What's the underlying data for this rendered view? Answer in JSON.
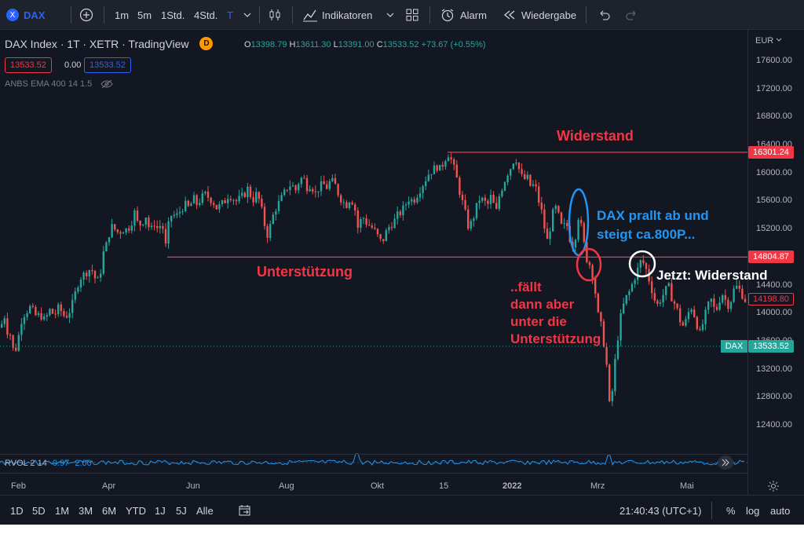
{
  "toolbar": {
    "symbol": "DAX",
    "symbol_badge": "X",
    "timeframes": [
      "1m",
      "5m",
      "1Std.",
      "4Std.",
      "T"
    ],
    "active_timeframe": "T",
    "indicators_label": "Indikatoren",
    "alarm_label": "Alarm",
    "replay_label": "Wiedergabe"
  },
  "legend": {
    "title": "DAX Index · 1T · XETR · TradingView",
    "badge": "D",
    "o_label": "O",
    "o_value": "13398.79",
    "h_label": "H",
    "h_value": "13611.30",
    "l_label": "L",
    "l_value": "13391.00",
    "c_label": "C",
    "c_value": "13533.52",
    "change": "+73.67 (+0.55%)",
    "bid": "13533.52",
    "spread": "0.00",
    "ask": "13533.52"
  },
  "indicator": {
    "label": "ANBS EMA 400 14 1.5"
  },
  "price_axis": {
    "currency": "EUR",
    "ticks": [
      "17600.00",
      "17200.00",
      "16800.00",
      "16400.00",
      "16000.00",
      "15600.00",
      "15200.00",
      "14800.00",
      "14400.00",
      "14000.00",
      "13600.00",
      "13200.00",
      "12800.00",
      "12400.00"
    ]
  },
  "price_tags": {
    "resistance": "16301.24",
    "support": "14804.87",
    "mid": "14198.80",
    "current_label": "DAX",
    "current": "13533.52"
  },
  "annotations": {
    "resistance": "Widerstand",
    "support": "Unterstützung",
    "bounce_line1": "DAX prallt ab und",
    "bounce_line2": "steigt ca.800P...",
    "fall_line1": "..fällt",
    "fall_line2": "dann aber",
    "fall_line3": "unter die",
    "fall_line4": "Unterstützung",
    "now": "Jetzt: Widerstand"
  },
  "rvol": {
    "label": "RVOL 2 14",
    "v1": "0.97",
    "v2": "2.00"
  },
  "x_axis": {
    "ticks": [
      "Feb",
      "Apr",
      "Jun",
      "Aug",
      "Okt",
      "15",
      "2022",
      "Mrz",
      "Mai"
    ]
  },
  "bottombar": {
    "ranges": [
      "1D",
      "5D",
      "1M",
      "3M",
      "6M",
      "YTD",
      "1J",
      "5J",
      "Alle"
    ],
    "time": "21:40:43 (UTC+1)",
    "percent": "%",
    "log": "log",
    "auto": "auto"
  },
  "colors": {
    "up": "#26a69a",
    "down": "#ef5350",
    "level": "#f23645",
    "bounce": "#2196f3",
    "now": "#ffffff"
  },
  "chart_data": {
    "type": "candlestick",
    "ylim": [
      12200,
      17800
    ],
    "x_ticks": [
      "Feb",
      "Apr",
      "Jun",
      "Aug",
      "Okt",
      "15",
      "2022",
      "Mrz",
      "Mai"
    ],
    "levels": [
      {
        "name": "Widerstand",
        "value": 16301.24
      },
      {
        "name": "Unterstützung",
        "value": 14804.87
      }
    ],
    "points": [
      [
        0,
        13800
      ],
      [
        4,
        14000
      ],
      [
        8,
        13750
      ],
      [
        12,
        13700
      ],
      [
        15,
        13500
      ],
      [
        18,
        13450
      ],
      [
        22,
        13650
      ],
      [
        26,
        13900
      ],
      [
        30,
        14000
      ],
      [
        34,
        14050
      ],
      [
        38,
        14100
      ],
      [
        42,
        14000
      ],
      [
        46,
        13950
      ],
      [
        50,
        14000
      ],
      [
        54,
        13900
      ],
      [
        58,
        13950
      ],
      [
        62,
        14050
      ],
      [
        66,
        14000
      ],
      [
        70,
        14000
      ],
      [
        74,
        14100
      ],
      [
        78,
        14000
      ],
      [
        82,
        13950
      ],
      [
        86,
        14000
      ],
      [
        90,
        14100
      ],
      [
        95,
        14300
      ],
      [
        100,
        14500
      ],
      [
        105,
        14550
      ],
      [
        110,
        14600
      ],
      [
        115,
        14650
      ],
      [
        120,
        14500
      ],
      [
        125,
        14450
      ],
      [
        130,
        14850
      ],
      [
        135,
        15000
      ],
      [
        140,
        15250
      ],
      [
        145,
        15200
      ],
      [
        150,
        15150
      ],
      [
        155,
        15200
      ],
      [
        160,
        15200
      ],
      [
        165,
        15250
      ],
      [
        170,
        15450
      ],
      [
        175,
        15250
      ],
      [
        180,
        15300
      ],
      [
        185,
        15400
      ],
      [
        190,
        15150
      ],
      [
        195,
        15300
      ],
      [
        200,
        15200
      ],
      [
        205,
        15300
      ],
      [
        210,
        14950
      ],
      [
        215,
        15400
      ],
      [
        220,
        15400
      ],
      [
        225,
        15400
      ],
      [
        230,
        15500
      ],
      [
        235,
        15550
      ],
      [
        240,
        15500
      ],
      [
        245,
        15650
      ],
      [
        250,
        15550
      ],
      [
        255,
        15650
      ],
      [
        260,
        15700
      ],
      [
        265,
        15650
      ],
      [
        270,
        15600
      ],
      [
        275,
        15500
      ],
      [
        280,
        15550
      ],
      [
        285,
        15600
      ],
      [
        290,
        15700
      ],
      [
        295,
        15650
      ],
      [
        300,
        15600
      ],
      [
        305,
        15650
      ],
      [
        310,
        15700
      ],
      [
        315,
        15800
      ],
      [
        320,
        15600
      ],
      [
        325,
        15700
      ],
      [
        330,
        15600
      ],
      [
        335,
        15300
      ],
      [
        340,
        15100
      ],
      [
        345,
        15350
      ],
      [
        350,
        15500
      ],
      [
        355,
        15600
      ],
      [
        360,
        15700
      ],
      [
        365,
        15800
      ],
      [
        370,
        15850
      ],
      [
        375,
        15750
      ],
      [
        380,
        15900
      ],
      [
        385,
        15950
      ],
      [
        390,
        15800
      ],
      [
        395,
        15850
      ],
      [
        400,
        15700
      ],
      [
        405,
        15800
      ],
      [
        410,
        15850
      ],
      [
        415,
        15800
      ],
      [
        420,
        15900
      ],
      [
        425,
        15850
      ],
      [
        430,
        15700
      ],
      [
        435,
        15600
      ],
      [
        440,
        15550
      ],
      [
        445,
        15650
      ],
      [
        450,
        15550
      ],
      [
        455,
        15200
      ],
      [
        460,
        15400
      ],
      [
        465,
        15300
      ],
      [
        470,
        15250
      ],
      [
        475,
        15200
      ],
      [
        480,
        15100
      ],
      [
        485,
        15000
      ],
      [
        490,
        15150
      ],
      [
        495,
        15250
      ],
      [
        500,
        15300
      ],
      [
        505,
        15400
      ],
      [
        510,
        15450
      ],
      [
        515,
        15550
      ],
      [
        520,
        15650
      ],
      [
        525,
        15600
      ],
      [
        530,
        15700
      ],
      [
        535,
        15800
      ],
      [
        540,
        15900
      ],
      [
        545,
        16000
      ],
      [
        550,
        16050
      ],
      [
        555,
        16100
      ],
      [
        560,
        16050
      ],
      [
        565,
        16200
      ],
      [
        570,
        16280
      ],
      [
        575,
        16150
      ],
      [
        580,
        15950
      ],
      [
        585,
        15700
      ],
      [
        590,
        15500
      ],
      [
        595,
        15250
      ],
      [
        600,
        15300
      ],
      [
        605,
        15500
      ],
      [
        610,
        15650
      ],
      [
        615,
        15600
      ],
      [
        620,
        15550
      ],
      [
        625,
        15700
      ],
      [
        630,
        15400
      ],
      [
        635,
        15700
      ],
      [
        640,
        15850
      ],
      [
        645,
        16000
      ],
      [
        650,
        16100
      ],
      [
        655,
        16250
      ],
      [
        660,
        16050
      ],
      [
        665,
        15900
      ],
      [
        670,
        15950
      ],
      [
        675,
        15800
      ],
      [
        680,
        15850
      ],
      [
        685,
        15600
      ],
      [
        690,
        15400
      ],
      [
        695,
        15000
      ],
      [
        700,
        15250
      ],
      [
        705,
        15550
      ],
      [
        710,
        15400
      ],
      [
        715,
        15200
      ],
      [
        720,
        15300
      ],
      [
        725,
        15050
      ],
      [
        730,
        14950
      ],
      [
        735,
        15400
      ],
      [
        740,
        15200
      ],
      [
        745,
        14800
      ],
      [
        750,
        14700
      ],
      [
        755,
        14500
      ],
      [
        760,
        14000
      ],
      [
        765,
        13800
      ],
      [
        770,
        13400
      ],
      [
        773,
        13100
      ],
      [
        776,
        12500
      ],
      [
        780,
        13100
      ],
      [
        785,
        13600
      ],
      [
        790,
        14000
      ],
      [
        795,
        14200
      ],
      [
        800,
        14300
      ],
      [
        805,
        14450
      ],
      [
        810,
        14600
      ],
      [
        815,
        14750
      ],
      [
        820,
        14700
      ],
      [
        825,
        14500
      ],
      [
        830,
        14300
      ],
      [
        835,
        14100
      ],
      [
        840,
        14200
      ],
      [
        845,
        14300
      ],
      [
        850,
        14400
      ],
      [
        855,
        14200
      ],
      [
        860,
        14100
      ],
      [
        865,
        13900
      ],
      [
        870,
        13800
      ],
      [
        875,
        14000
      ],
      [
        880,
        14100
      ],
      [
        885,
        13900
      ],
      [
        890,
        13700
      ],
      [
        895,
        13900
      ],
      [
        900,
        14100
      ],
      [
        905,
        14200
      ],
      [
        910,
        14000
      ],
      [
        915,
        14200
      ],
      [
        920,
        14300
      ],
      [
        925,
        14100
      ],
      [
        930,
        14200
      ],
      [
        935,
        14400
      ],
      [
        940,
        14350
      ],
      [
        945,
        14250
      ],
      [
        950,
        14150
      ]
    ]
  }
}
